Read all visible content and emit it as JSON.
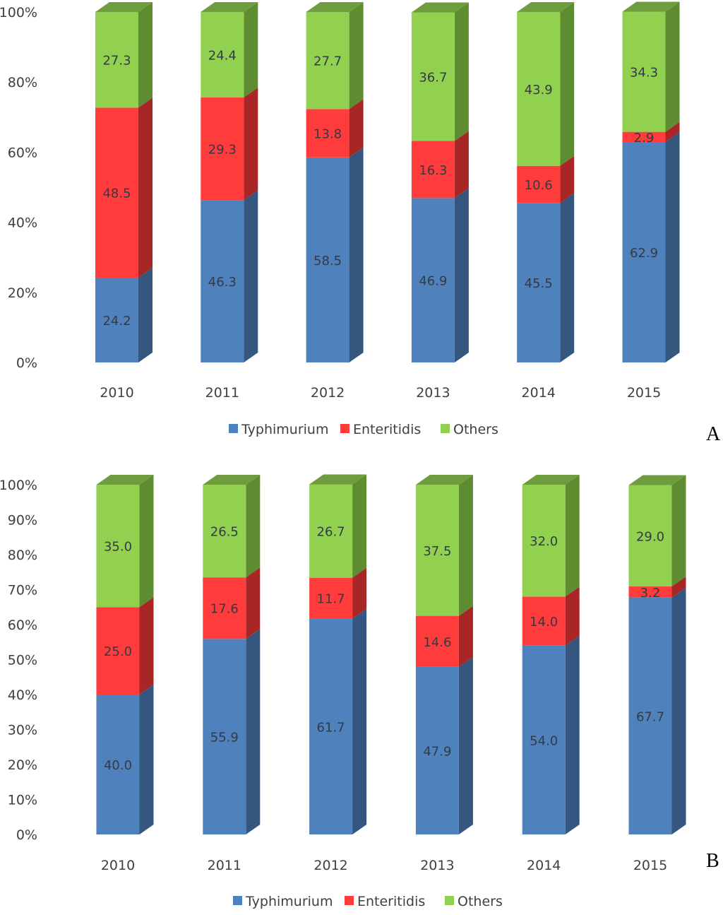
{
  "colors": {
    "Typhimurium": {
      "front": "#4f81bd",
      "side": "#34567f",
      "top": "#3e6a9e"
    },
    "Enteritidis": {
      "front": "#ff3b3b",
      "side": "#a82626",
      "top": "#c93030"
    },
    "Others": {
      "front": "#92d050",
      "side": "#5e8c31",
      "top": "#6f9c3e"
    }
  },
  "chart_data": [
    {
      "type": "bar",
      "stacked": true,
      "percent_stacked": true,
      "three_d": true,
      "panel_label": "A",
      "title": "",
      "xlabel": "",
      "ylabel": "",
      "categories": [
        "2010",
        "2011",
        "2012",
        "2013",
        "2014",
        "2015"
      ],
      "y_ticks": [
        "0%",
        "20%",
        "40%",
        "60%",
        "80%",
        "100%"
      ],
      "ylim": [
        0,
        100
      ],
      "grid": false,
      "legend_position": "bottom",
      "series": [
        {
          "name": "Typhimurium",
          "values": [
            24.2,
            46.3,
            58.5,
            46.9,
            45.5,
            62.9
          ]
        },
        {
          "name": "Enteritidis",
          "values": [
            48.5,
            29.3,
            13.8,
            16.3,
            10.6,
            2.9
          ]
        },
        {
          "name": "Others",
          "values": [
            27.3,
            24.4,
            27.7,
            36.7,
            43.9,
            34.3
          ]
        }
      ]
    },
    {
      "type": "bar",
      "stacked": true,
      "percent_stacked": true,
      "three_d": true,
      "panel_label": "B",
      "title": "",
      "xlabel": "",
      "ylabel": "",
      "categories": [
        "2010",
        "2011",
        "2012",
        "2013",
        "2014",
        "2015"
      ],
      "y_ticks": [
        "0%",
        "10%",
        "20%",
        "30%",
        "40%",
        "50%",
        "60%",
        "70%",
        "80%",
        "90%",
        "100%"
      ],
      "ylim": [
        0,
        100
      ],
      "grid": false,
      "legend_position": "bottom",
      "series": [
        {
          "name": "Typhimurium",
          "values": [
            40.0,
            55.9,
            61.7,
            47.9,
            54.0,
            67.7
          ]
        },
        {
          "name": "Enteritidis",
          "values": [
            25.0,
            17.6,
            11.7,
            14.6,
            14.0,
            3.2
          ]
        },
        {
          "name": "Others",
          "values": [
            35.0,
            26.5,
            26.7,
            37.5,
            32.0,
            29.0
          ]
        }
      ]
    }
  ]
}
